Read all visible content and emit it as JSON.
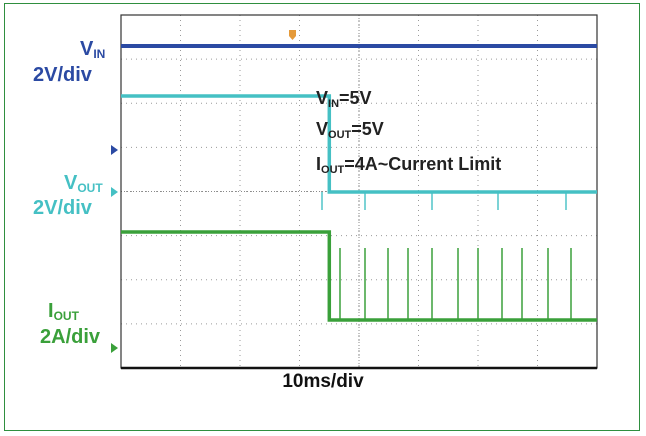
{
  "chart_data": {
    "type": "line",
    "title": "",
    "xlabel": "10ms/div",
    "ylabel": "",
    "channels": [
      {
        "name": "V_IN",
        "symbol": "V",
        "subscript": "IN",
        "scale": "2V/div",
        "color": "#2b4aa3"
      },
      {
        "name": "V_OUT",
        "symbol": "V",
        "subscript": "OUT",
        "scale": "2V/div",
        "color": "#45c0c4"
      },
      {
        "name": "I_OUT",
        "symbol": "I",
        "subscript": "OUT",
        "scale": "2A/div",
        "color": "#3aa03a"
      }
    ],
    "series": [
      {
        "name": "V_IN",
        "x_ms": [
          0,
          80
        ],
        "values_V": [
          5,
          5
        ]
      },
      {
        "name": "V_OUT",
        "x_ms": [
          0,
          35,
          35,
          80
        ],
        "values_V": [
          5,
          5,
          0,
          0
        ]
      },
      {
        "name": "I_OUT",
        "x_ms": [
          0,
          35,
          35,
          80
        ],
        "values_A": [
          4,
          4,
          0,
          0
        ]
      }
    ],
    "annotations": [
      {
        "symbol": "V",
        "subscript": "IN",
        "text": "=5V"
      },
      {
        "symbol": "V",
        "subscript": "OUT",
        "text": "=5V"
      },
      {
        "symbol": "I",
        "subscript": "OUT",
        "text": "=4A~Current Limit"
      }
    ],
    "grid": true
  }
}
